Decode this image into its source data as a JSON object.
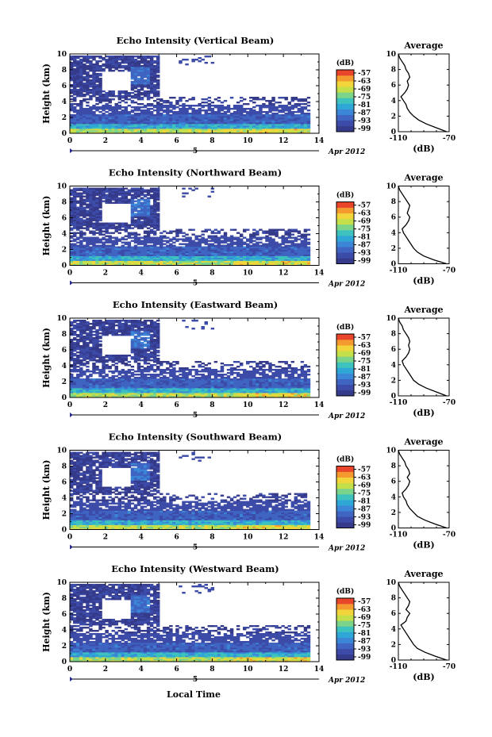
{
  "figure": {
    "x_axis_label": "Local Time",
    "date_label": "Apr 2012",
    "day_marker": "5",
    "colorbar_unit": "(dB)",
    "colorbar_ticks": [
      "-57",
      "-63",
      "-69",
      "-75",
      "-81",
      "-87",
      "-93",
      "-99"
    ],
    "profile_title": "Average",
    "profile_xlabel": "(dB)",
    "colormap": [
      "#353a8a",
      "#3c4aa8",
      "#3f64c2",
      "#3b86d6",
      "#2ea6d6",
      "#3ec2be",
      "#7cd38a",
      "#c5df4a",
      "#f2d53a",
      "#f59a2e",
      "#e8452a"
    ]
  },
  "chart_data": [
    {
      "type": "heatmap",
      "title": "Echo Intensity (Vertical Beam)",
      "ylabel": "Height (km)",
      "xlabel": "Local Time",
      "xlim": [
        0,
        14
      ],
      "ylim": [
        0,
        10
      ],
      "x_ticks": [
        "0",
        "2",
        "4",
        "6",
        "8",
        "10",
        "12",
        "14"
      ],
      "y_ticks": [
        "0",
        "2",
        "4",
        "6",
        "8",
        "10"
      ],
      "colorbar": {
        "label": "(dB)",
        "range": [
          -99,
          -57
        ]
      },
      "profile": {
        "title": "Average",
        "xlabel": "(dB)",
        "xlim": [
          -110,
          -70
        ],
        "x_ticks": [
          "-110",
          "-70"
        ],
        "height": [
          0,
          0.5,
          1,
          1.5,
          2,
          2.5,
          3,
          3.5,
          4,
          4.5,
          5,
          5.5,
          6,
          6.5,
          7,
          7.5,
          8,
          8.5,
          9,
          9.5,
          10
        ],
        "db": [
          -72,
          -80,
          -88,
          -94,
          -98,
          -101,
          -103,
          -104,
          -106,
          -108,
          -105,
          -103,
          -102,
          -103,
          -101,
          -102,
          -104,
          -105,
          -107,
          -109,
          -110
        ]
      }
    },
    {
      "type": "heatmap",
      "title": "Echo Intensity (Northward Beam)",
      "ylabel": "Height (km)",
      "xlabel": "Local Time",
      "xlim": [
        0,
        14
      ],
      "ylim": [
        0,
        10
      ],
      "x_ticks": [
        "0",
        "2",
        "4",
        "6",
        "8",
        "10",
        "12",
        "14"
      ],
      "y_ticks": [
        "0",
        "2",
        "4",
        "6",
        "8",
        "10"
      ],
      "colorbar": {
        "label": "(dB)",
        "range": [
          -99,
          -57
        ]
      },
      "profile": {
        "title": "Average",
        "xlabel": "(dB)",
        "xlim": [
          -110,
          -70
        ],
        "x_ticks": [
          "-110",
          "-70"
        ],
        "height": [
          0,
          0.5,
          1,
          1.5,
          2,
          2.5,
          3,
          3.5,
          4,
          4.5,
          5,
          5.5,
          6,
          6.5,
          7,
          7.5,
          8,
          8.5,
          9,
          9.5,
          10
        ],
        "db": [
          -72,
          -82,
          -90,
          -95,
          -98,
          -100,
          -102,
          -104,
          -106,
          -107,
          -104,
          -102,
          -101,
          -103,
          -102,
          -101,
          -103,
          -105,
          -107,
          -109,
          -110
        ]
      }
    },
    {
      "type": "heatmap",
      "title": "Echo Intensity (Eastward Beam)",
      "ylabel": "Height (km)",
      "xlabel": "Local Time",
      "xlim": [
        0,
        14
      ],
      "ylim": [
        0,
        10
      ],
      "x_ticks": [
        "0",
        "2",
        "4",
        "6",
        "8",
        "10",
        "12",
        "14"
      ],
      "y_ticks": [
        "0",
        "2",
        "4",
        "6",
        "8",
        "10"
      ],
      "colorbar": {
        "label": "(dB)",
        "range": [
          -99,
          -57
        ]
      },
      "profile": {
        "title": "Average",
        "xlabel": "(dB)",
        "xlim": [
          -110,
          -70
        ],
        "x_ticks": [
          "-110",
          "-70"
        ],
        "height": [
          0,
          0.5,
          1,
          1.5,
          2,
          2.5,
          3,
          3.5,
          4,
          4.5,
          5,
          5.5,
          6,
          6.5,
          7,
          7.5,
          8,
          8.5,
          9,
          9.5,
          10
        ],
        "db": [
          -72,
          -80,
          -88,
          -94,
          -98,
          -100,
          -102,
          -104,
          -106,
          -107,
          -104,
          -102,
          -101,
          -102,
          -101,
          -102,
          -104,
          -106,
          -107,
          -109,
          -110
        ]
      }
    },
    {
      "type": "heatmap",
      "title": "Echo Intensity (Southward Beam)",
      "ylabel": "Height (km)",
      "xlabel": "Local Time",
      "xlim": [
        0,
        14
      ],
      "ylim": [
        0,
        10
      ],
      "x_ticks": [
        "0",
        "2",
        "4",
        "6",
        "8",
        "10",
        "12",
        "14"
      ],
      "y_ticks": [
        "0",
        "2",
        "4",
        "6",
        "8",
        "10"
      ],
      "colorbar": {
        "label": "(dB)",
        "range": [
          -99,
          -57
        ]
      },
      "profile": {
        "title": "Average",
        "xlabel": "(dB)",
        "xlim": [
          -110,
          -70
        ],
        "x_ticks": [
          "-110",
          "-70"
        ],
        "height": [
          0,
          0.5,
          1,
          1.5,
          2,
          2.5,
          3,
          3.5,
          4,
          4.5,
          5,
          5.5,
          6,
          6.5,
          7,
          7.5,
          8,
          8.5,
          9,
          9.5,
          10
        ],
        "db": [
          -72,
          -81,
          -89,
          -95,
          -98,
          -101,
          -103,
          -104,
          -106,
          -107,
          -104,
          -102,
          -101,
          -103,
          -101,
          -102,
          -104,
          -105,
          -107,
          -109,
          -110
        ]
      }
    },
    {
      "type": "heatmap",
      "title": "Echo Intensity (Westward Beam)",
      "ylabel": "Height (km)",
      "xlabel": "Local Time",
      "xlim": [
        0,
        14
      ],
      "ylim": [
        0,
        10
      ],
      "x_ticks": [
        "0",
        "2",
        "4",
        "6",
        "8",
        "10",
        "12",
        "14"
      ],
      "y_ticks": [
        "0",
        "2",
        "4",
        "6",
        "8",
        "10"
      ],
      "colorbar": {
        "label": "(dB)",
        "range": [
          -99,
          -57
        ]
      },
      "profile": {
        "title": "Average",
        "xlabel": "(dB)",
        "xlim": [
          -110,
          -70
        ],
        "x_ticks": [
          "-110",
          "-70"
        ],
        "height": [
          0,
          0.5,
          1,
          1.5,
          2,
          2.5,
          3,
          3.5,
          4,
          4.5,
          5,
          5.5,
          6,
          6.5,
          7,
          7.5,
          8,
          8.5,
          9,
          9.5,
          10
        ],
        "db": [
          -72,
          -81,
          -89,
          -95,
          -98,
          -100,
          -102,
          -104,
          -106,
          -108,
          -104,
          -103,
          -101,
          -104,
          -102,
          -101,
          -103,
          -105,
          -107,
          -109,
          -110
        ]
      }
    }
  ]
}
